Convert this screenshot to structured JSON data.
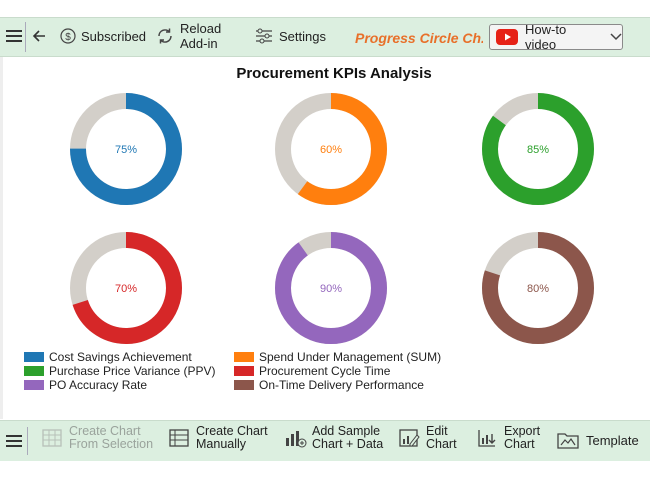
{
  "toolbar": {
    "subscribed_label": "Subscribed",
    "reload_label_1": "Reload",
    "reload_label_2": "Add-in",
    "settings_label": "Settings",
    "chart_name": "Progress Circle Ch...",
    "howto_label": "How-to video"
  },
  "bottom_toolbar": {
    "create_selection_1": "Create Chart",
    "create_selection_2": "From Selection",
    "create_manual_1": "Create Chart",
    "create_manual_2": "Manually",
    "add_sample_1": "Add Sample",
    "add_sample_2": "Chart + Data",
    "edit_1": "Edit",
    "edit_2": "Chart",
    "export_1": "Export",
    "export_2": "Chart",
    "template_label": "Template"
  },
  "chart_data": {
    "type": "progress-circle",
    "title": "Procurement KPIs Analysis",
    "track_color": "#d3cfc9",
    "series": [
      {
        "name": "Cost Savings Achievement",
        "value": 75,
        "label": "75%",
        "color": "#1f77b4"
      },
      {
        "name": "Spend Under Management (SUM)",
        "value": 60,
        "label": "60%",
        "color": "#ff7f0e"
      },
      {
        "name": "Purchase Price Variance (PPV)",
        "value": 85,
        "label": "85%",
        "color": "#2ca02c"
      },
      {
        "name": "Procurement Cycle Time",
        "value": 70,
        "label": "70%",
        "color": "#d62728"
      },
      {
        "name": "PO Accuracy Rate",
        "value": 90,
        "label": "90%",
        "color": "#9467bd"
      },
      {
        "name": "On-Time Delivery Performance",
        "value": 80,
        "label": "80%",
        "color": "#8c564b"
      }
    ]
  }
}
